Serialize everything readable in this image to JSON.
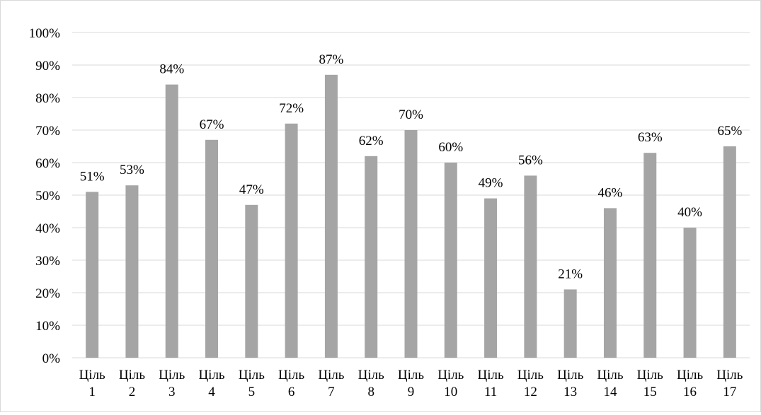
{
  "chart_data": {
    "type": "bar",
    "categories": [
      [
        "Ціль",
        "1"
      ],
      [
        "Ціль",
        "2"
      ],
      [
        "Ціль",
        "3"
      ],
      [
        "Ціль",
        "4"
      ],
      [
        "Ціль",
        "5"
      ],
      [
        "Ціль",
        "6"
      ],
      [
        "Ціль",
        "7"
      ],
      [
        "Ціль",
        "8"
      ],
      [
        "Ціль",
        "9"
      ],
      [
        "Ціль",
        "10"
      ],
      [
        "Ціль",
        "11"
      ],
      [
        "Ціль",
        "12"
      ],
      [
        "Ціль",
        "13"
      ],
      [
        "Ціль",
        "14"
      ],
      [
        "Ціль",
        "15"
      ],
      [
        "Ціль",
        "16"
      ],
      [
        "Ціль",
        "17"
      ]
    ],
    "values": [
      51,
      53,
      84,
      67,
      47,
      72,
      87,
      62,
      70,
      60,
      49,
      56,
      21,
      46,
      63,
      40,
      65
    ],
    "data_labels": [
      "51%",
      "53%",
      "84%",
      "67%",
      "47%",
      "72%",
      "87%",
      "62%",
      "70%",
      "60%",
      "49%",
      "56%",
      "21%",
      "46%",
      "63%",
      "40%",
      "65%"
    ],
    "yticks": [
      "0%",
      "10%",
      "20%",
      "30%",
      "40%",
      "50%",
      "60%",
      "70%",
      "80%",
      "90%",
      "100%"
    ],
    "ylim": [
      0,
      100
    ],
    "title": "",
    "xlabel": "",
    "ylabel": "",
    "grid": true,
    "legend": "none",
    "bar_color": "#a5a5a5",
    "grid_color": "#d9d9d9"
  }
}
